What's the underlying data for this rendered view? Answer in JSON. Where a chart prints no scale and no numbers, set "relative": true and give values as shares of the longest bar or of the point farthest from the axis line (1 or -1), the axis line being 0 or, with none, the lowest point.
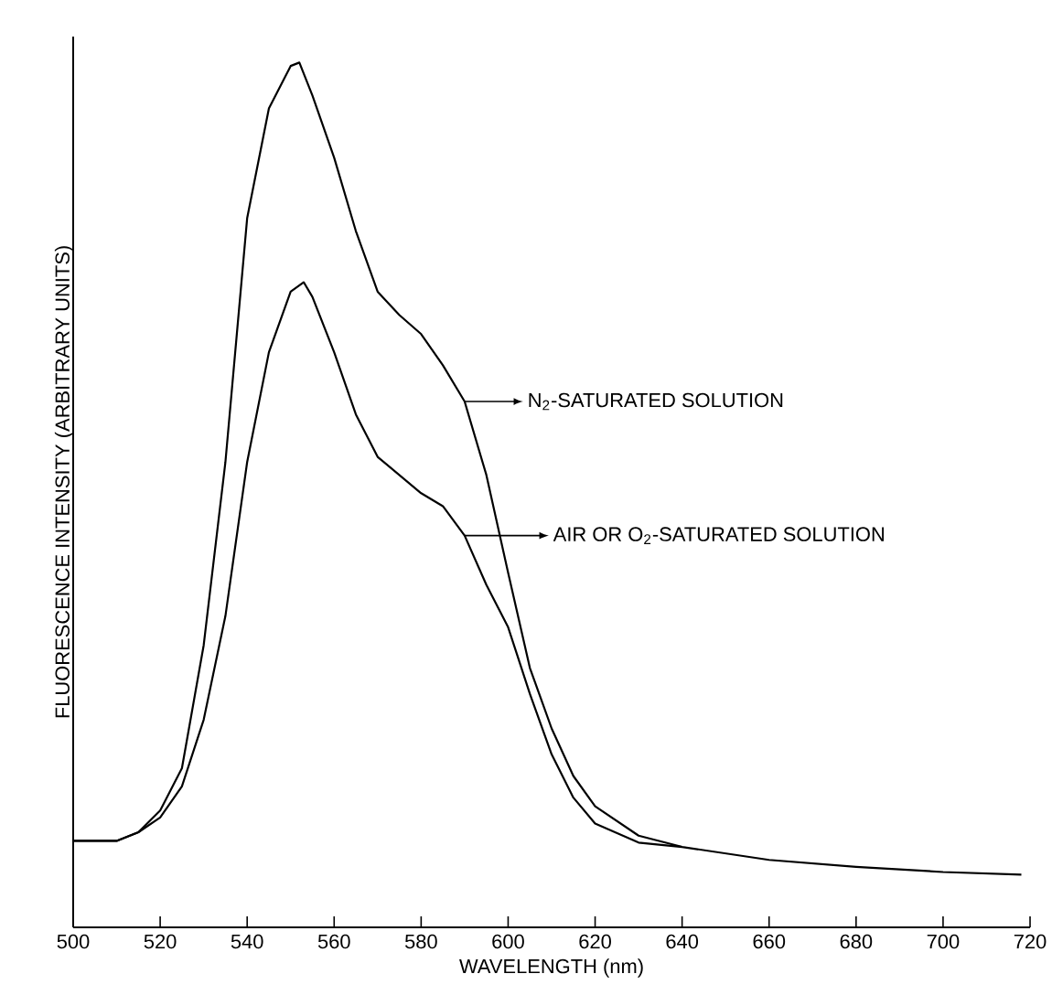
{
  "chart_data": {
    "type": "line",
    "relative": true,
    "xlabel": "WAVELENGTH (nm)",
    "ylabel": "FLUORESCENCE INTENSITY (ARBITRARY UNITS)",
    "xlim": [
      500,
      720
    ],
    "xticks": [
      500,
      520,
      540,
      560,
      580,
      600,
      620,
      640,
      660,
      680,
      700,
      720
    ],
    "legend": "right",
    "grid": false,
    "series": [
      {
        "name": "N$_{2}$-SATURATED SOLUTION",
        "color": "#000000",
        "x": [
          500,
          510,
          515,
          520,
          525,
          530,
          535,
          540,
          545,
          550,
          552,
          555,
          560,
          565,
          570,
          575,
          580,
          585,
          590,
          595,
          600,
          605,
          610,
          615,
          620,
          630,
          640,
          660,
          680,
          700,
          718
        ],
        "values": [
          0.1,
          0.1,
          0.11,
          0.135,
          0.184,
          0.326,
          0.538,
          0.82,
          0.947,
          0.996,
          1.0,
          0.962,
          0.89,
          0.805,
          0.735,
          0.708,
          0.686,
          0.65,
          0.608,
          0.523,
          0.41,
          0.3,
          0.23,
          0.175,
          0.14,
          0.106,
          0.093,
          0.078,
          0.07,
          0.064,
          0.061
        ]
      },
      {
        "name": "AIR OR O$_{2}$-SATURATED SOLUTION",
        "color": "#000000",
        "x": [
          500,
          510,
          515,
          520,
          525,
          530,
          535,
          540,
          545,
          550,
          553,
          555,
          560,
          565,
          570,
          575,
          580,
          585,
          590,
          595,
          600,
          605,
          610,
          615,
          620,
          630,
          640
        ],
        "values": [
          0.1,
          0.1,
          0.11,
          0.127,
          0.163,
          0.24,
          0.36,
          0.538,
          0.665,
          0.735,
          0.746,
          0.729,
          0.665,
          0.593,
          0.544,
          0.523,
          0.502,
          0.487,
          0.453,
          0.396,
          0.347,
          0.27,
          0.2,
          0.15,
          0.12,
          0.098,
          0.093
        ]
      }
    ]
  }
}
